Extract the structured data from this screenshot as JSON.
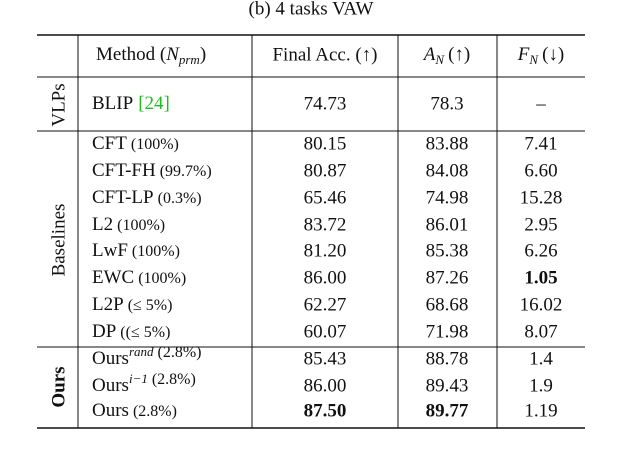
{
  "caption": "(b) 4 tasks VAW",
  "header": {
    "method": {
      "text": "Method (",
      "var": "N",
      "sub": "prm",
      "close": ")"
    },
    "final_acc": "Final Acc. (↑)",
    "an": {
      "var": "A",
      "sub": "N",
      "arrow": "(↑)"
    },
    "fn": {
      "var": "F",
      "sub": "N",
      "arrow": "(↓)"
    }
  },
  "groups": [
    {
      "label": "VLPs",
      "bold": false,
      "rows": [
        {
          "method": {
            "text": "BLIP",
            "cite": "[24]"
          },
          "final_acc": {
            "text": "74.73"
          },
          "an": {
            "text": "78.3"
          },
          "fn": {
            "text": "–"
          }
        }
      ]
    },
    {
      "label": "Baselines",
      "bold": false,
      "rows": [
        {
          "method": {
            "text": "CFT",
            "note": "(100%)"
          },
          "final_acc": {
            "text": "80.15"
          },
          "an": {
            "text": "83.88"
          },
          "fn": {
            "text": "7.41"
          }
        },
        {
          "method": {
            "text": "CFT-FH",
            "note": "(99.7%)"
          },
          "final_acc": {
            "text": "80.87"
          },
          "an": {
            "text": "84.08"
          },
          "fn": {
            "text": "6.60"
          }
        },
        {
          "method": {
            "text": "CFT-LP",
            "note": "(0.3%)"
          },
          "final_acc": {
            "text": "65.46"
          },
          "an": {
            "text": "74.98"
          },
          "fn": {
            "text": "15.28"
          }
        },
        {
          "method": {
            "text": "L2",
            "note": "(100%)"
          },
          "final_acc": {
            "text": "83.72"
          },
          "an": {
            "text": "86.01"
          },
          "fn": {
            "text": "2.95"
          }
        },
        {
          "method": {
            "text": "LwF",
            "note": "(100%)"
          },
          "final_acc": {
            "text": "81.20"
          },
          "an": {
            "text": "85.38"
          },
          "fn": {
            "text": "6.26"
          }
        },
        {
          "method": {
            "text": "EWC",
            "note": "(100%)"
          },
          "final_acc": {
            "text": "86.00",
            "style": "blue"
          },
          "an": {
            "text": "87.26"
          },
          "fn": {
            "text": "1.05",
            "style": "bold"
          }
        },
        {
          "method": {
            "text": "L2P",
            "note": "(≤ 5%)"
          },
          "final_acc": {
            "text": "62.27"
          },
          "an": {
            "text": "68.68"
          },
          "fn": {
            "text": "16.02"
          }
        },
        {
          "method": {
            "text": "DP",
            "note": "((≤ 5%)"
          },
          "final_acc": {
            "text": "60.07"
          },
          "an": {
            "text": "71.98"
          },
          "fn": {
            "text": "8.07"
          }
        }
      ]
    },
    {
      "label": "Ours",
      "bold": true,
      "rows": [
        {
          "method": {
            "text": "Ours",
            "sup": "rand",
            "note": "(2.8%)"
          },
          "final_acc": {
            "text": "85.43"
          },
          "an": {
            "text": "88.78"
          },
          "fn": {
            "text": "1.4"
          }
        },
        {
          "method": {
            "text": "Ours",
            "sup": "i−1",
            "note": "(2.8%)"
          },
          "final_acc": {
            "text": "86.00",
            "style": "blue"
          },
          "an": {
            "text": "89.43",
            "style": "blue"
          },
          "fn": {
            "text": "1.9"
          }
        },
        {
          "method": {
            "text": "Ours",
            "note": "(2.8%)"
          },
          "final_acc": {
            "text": "87.50",
            "style": "bold"
          },
          "an": {
            "text": "89.77",
            "style": "bold"
          },
          "fn": {
            "text": "1.19",
            "style": "blue"
          }
        }
      ]
    }
  ]
}
